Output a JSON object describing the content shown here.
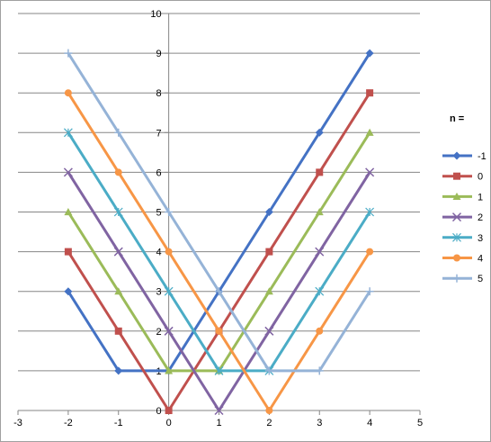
{
  "chart_data": {
    "type": "line",
    "title": "",
    "xlabel": "",
    "ylabel": "",
    "xlim": [
      -3,
      5
    ],
    "ylim": [
      0,
      10
    ],
    "x_ticks": [
      "-3",
      "-2",
      "-1",
      "0",
      "1",
      "2",
      "3",
      "4",
      "5"
    ],
    "y_ticks": [
      "0",
      "1",
      "2",
      "3",
      "4",
      "5",
      "6",
      "7",
      "8",
      "9",
      "10"
    ],
    "grid": "horizontal",
    "legend_title": "n =",
    "legend_position": "right",
    "x": [
      -2,
      -1,
      0,
      1,
      2,
      3,
      4
    ],
    "series": [
      {
        "name": "-1",
        "values": [
          3,
          1,
          1,
          3,
          5,
          7,
          9
        ],
        "color": "#4472C4",
        "marker": "diamond"
      },
      {
        "name": "0",
        "values": [
          4,
          2,
          0,
          2,
          4,
          6,
          8
        ],
        "color": "#C0504D",
        "marker": "square"
      },
      {
        "name": "1",
        "values": [
          5,
          3,
          1,
          1,
          3,
          5,
          7
        ],
        "color": "#9BBB59",
        "marker": "triangle"
      },
      {
        "name": "2",
        "values": [
          6,
          4,
          2,
          0,
          2,
          4,
          6
        ],
        "color": "#8064A2",
        "marker": "x"
      },
      {
        "name": "3",
        "values": [
          7,
          5,
          3,
          1,
          1,
          3,
          5
        ],
        "color": "#4BACC6",
        "marker": "star"
      },
      {
        "name": "4",
        "values": [
          8,
          6,
          4,
          2,
          0,
          2,
          4
        ],
        "color": "#F79646",
        "marker": "circle"
      },
      {
        "name": "5",
        "values": [
          9,
          7,
          5,
          3,
          1,
          1,
          3
        ],
        "color": "#95B3D7",
        "marker": "plus"
      }
    ]
  }
}
